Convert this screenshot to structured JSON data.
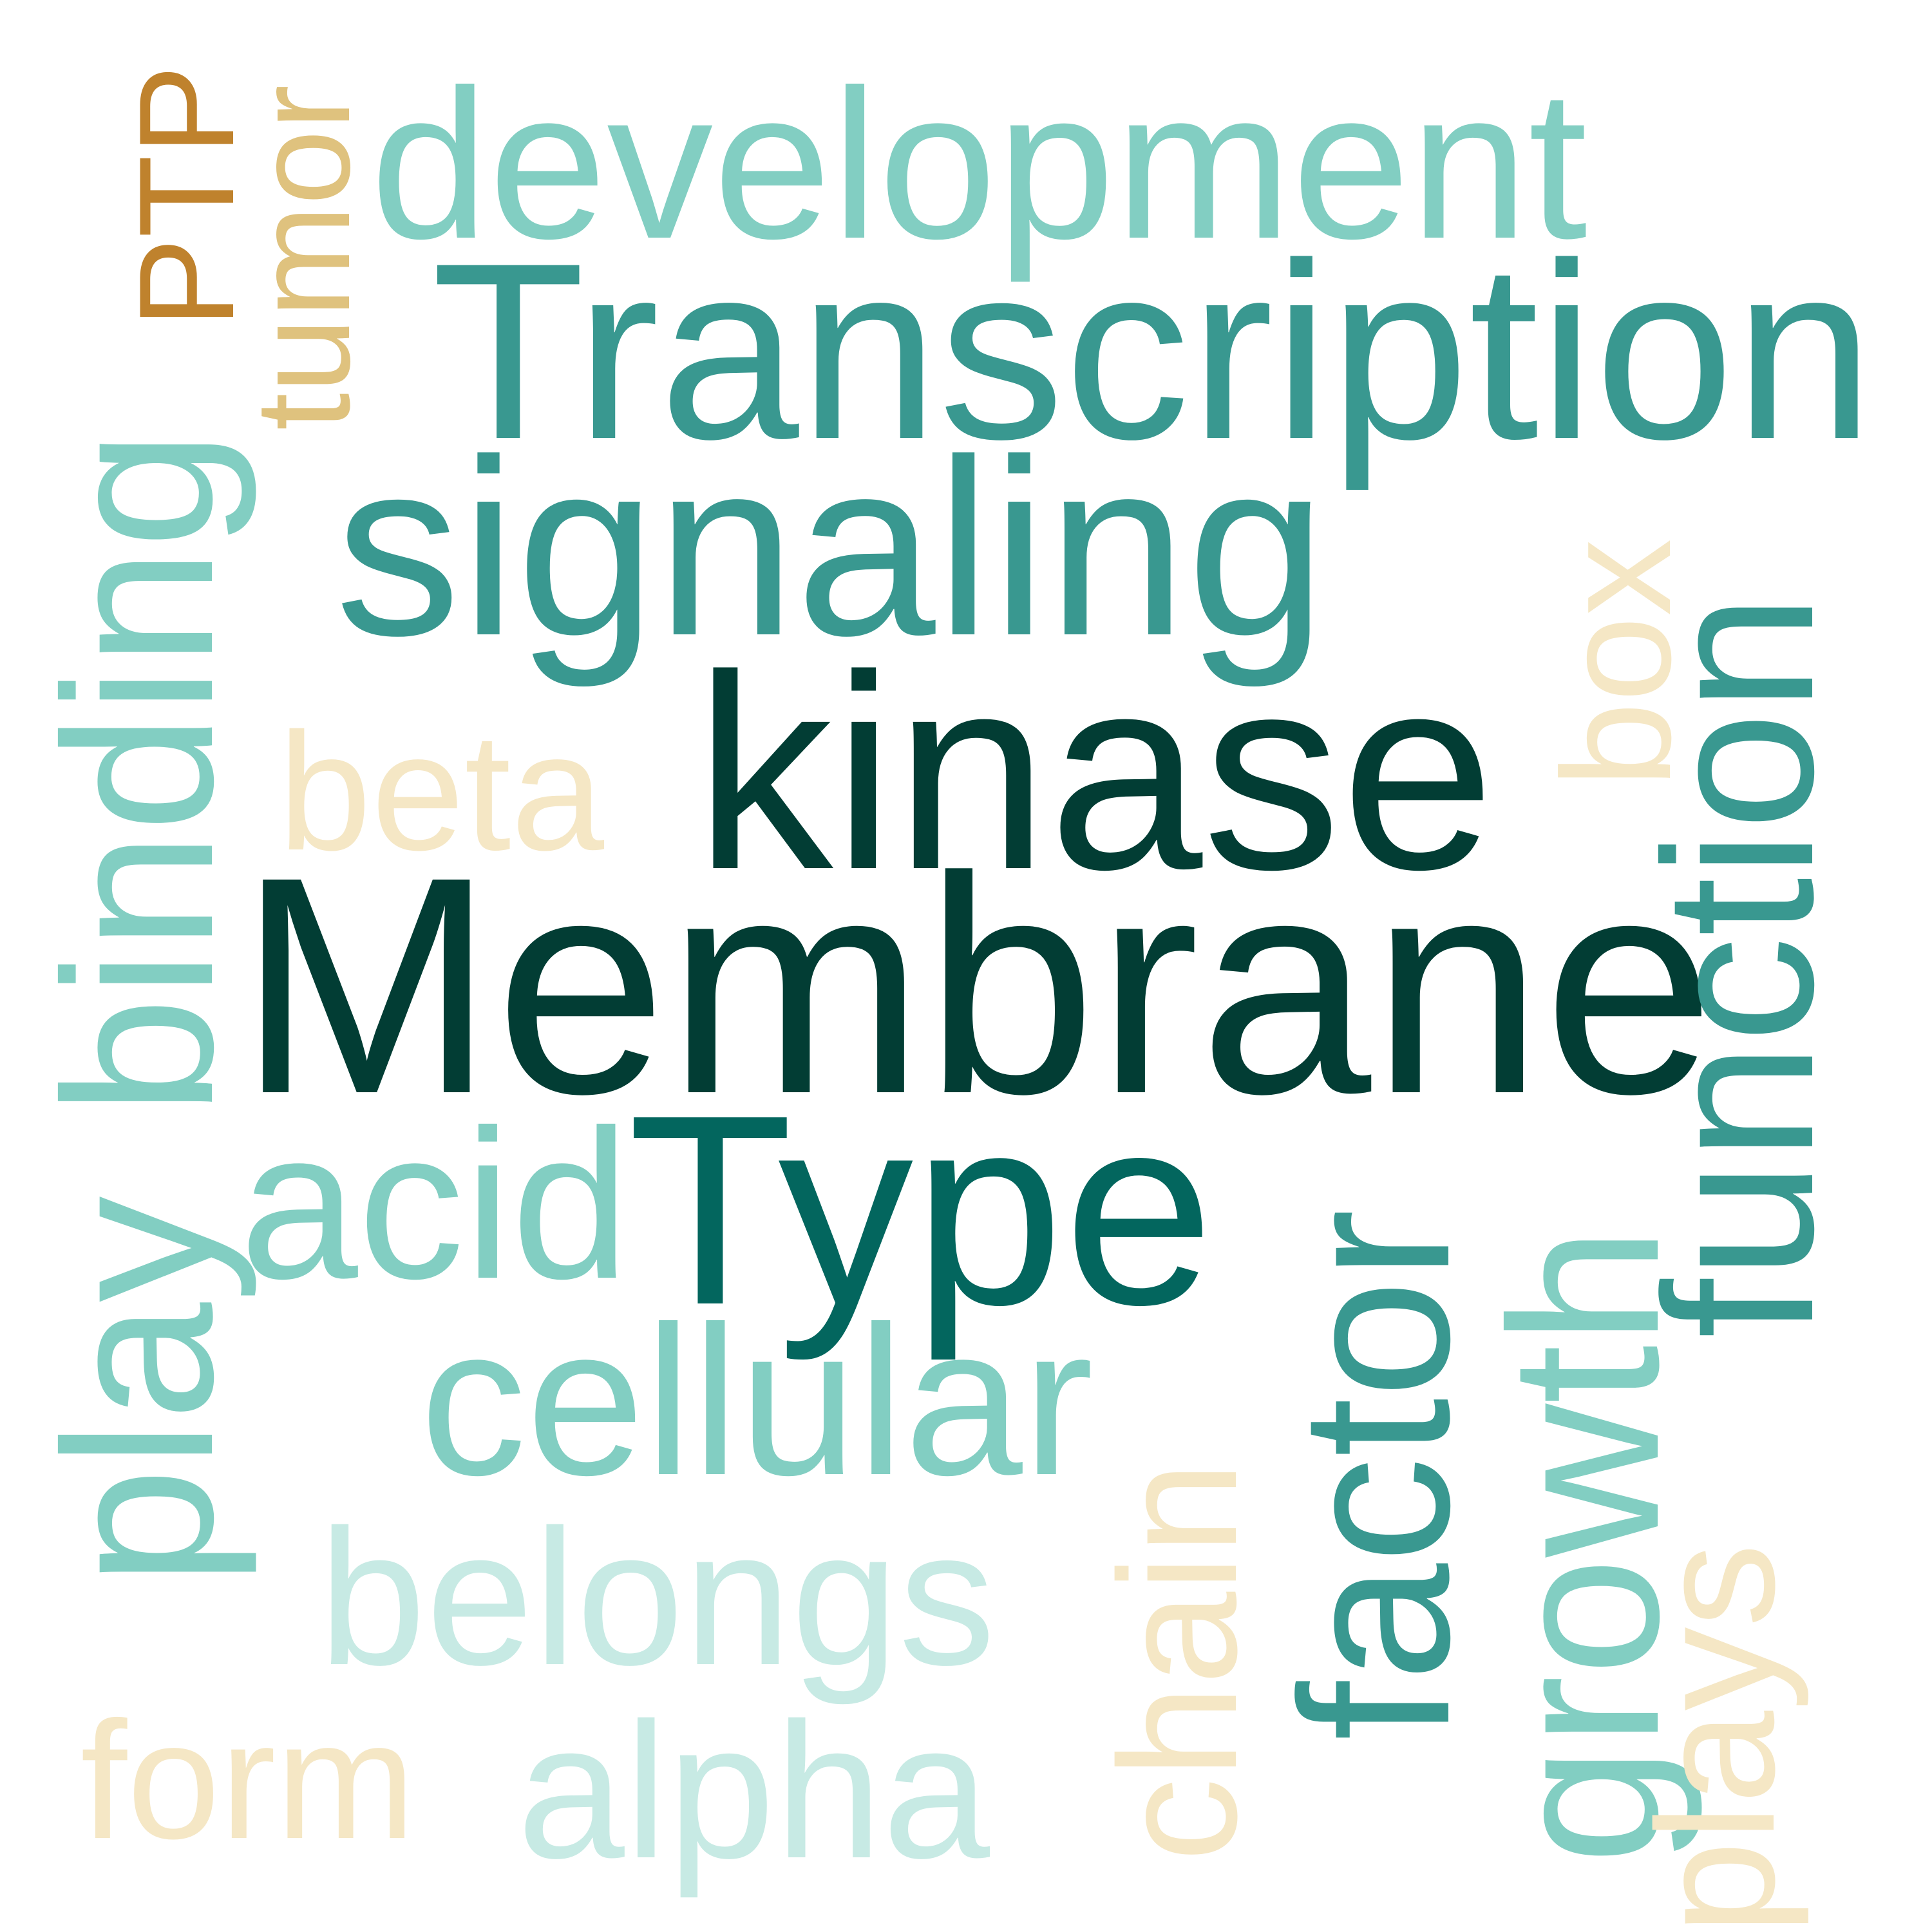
{
  "words": [
    {
      "id": "membrane",
      "text": "Membrane",
      "color": "#023d34"
    },
    {
      "id": "kinase",
      "text": "kinase",
      "color": "#023d34"
    },
    {
      "id": "type",
      "text": "Type",
      "color": "#03665e"
    },
    {
      "id": "transcription",
      "text": "Transcription",
      "color": "#399890"
    },
    {
      "id": "signaling",
      "text": "signaling",
      "color": "#399890"
    },
    {
      "id": "function",
      "text": "function",
      "color": "#399890"
    },
    {
      "id": "factor",
      "text": "factor",
      "color": "#399890"
    },
    {
      "id": "development",
      "text": "development",
      "color": "#82cec2"
    },
    {
      "id": "binding",
      "text": "binding",
      "color": "#82cec2"
    },
    {
      "id": "acid",
      "text": "acid",
      "color": "#82cec2"
    },
    {
      "id": "cellular",
      "text": "cellular",
      "color": "#82cec2"
    },
    {
      "id": "growth",
      "text": "growth",
      "color": "#82cec2"
    },
    {
      "id": "play",
      "text": "play",
      "color": "#82cec2"
    },
    {
      "id": "belongs",
      "text": "belongs",
      "color": "#c7eae4"
    },
    {
      "id": "alpha",
      "text": "alpha",
      "color": "#c7eae4"
    },
    {
      "id": "beta",
      "text": "beta",
      "color": "#f5e7c5"
    },
    {
      "id": "box",
      "text": "box",
      "color": "#f5e7c5"
    },
    {
      "id": "chain",
      "text": "chain",
      "color": "#f5e7c5"
    },
    {
      "id": "form",
      "text": "form",
      "color": "#f5e7c5"
    },
    {
      "id": "plays",
      "text": "plays",
      "color": "#f5e7c5"
    },
    {
      "id": "tumor",
      "text": "tumor",
      "color": "#dfc27e"
    },
    {
      "id": "ptp",
      "text": "PTP",
      "color": "#bf822d"
    }
  ]
}
